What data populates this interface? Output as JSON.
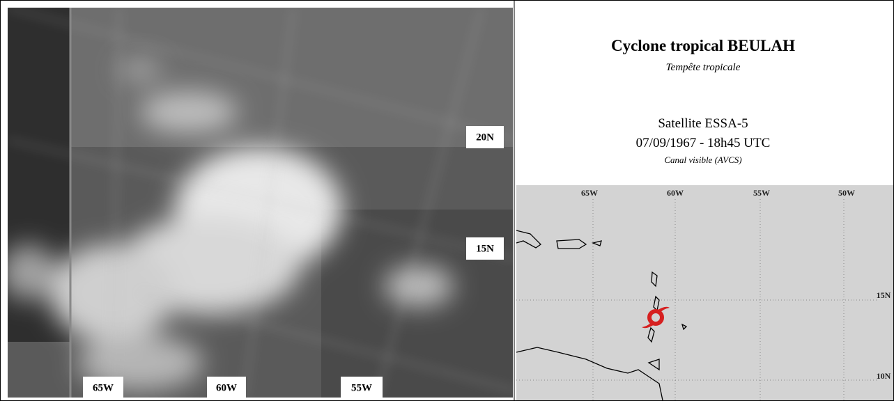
{
  "satellite": {
    "labels": [
      "20N",
      "15N",
      "65W",
      "60W",
      "55W"
    ]
  },
  "info": {
    "title": "Cyclone tropical BEULAH",
    "subtitle": "Tempête tropicale",
    "satellite": "Satellite ESSA-5",
    "date": "07/09/1967 - 18h45 UTC",
    "channel": "Canal visible  (AVCS)"
  },
  "map": {
    "labels": [
      "65W",
      "60W",
      "55W",
      "50W",
      "15N",
      "10N"
    ]
  }
}
